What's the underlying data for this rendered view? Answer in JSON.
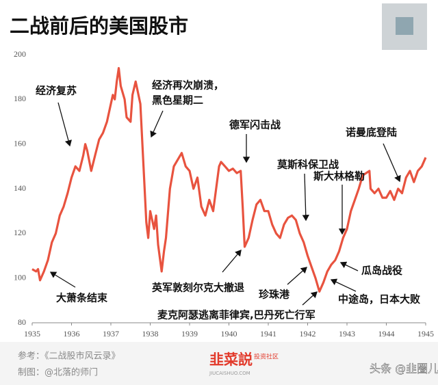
{
  "chart_data": {
    "type": "line",
    "title": "二战前后的美国股市",
    "x": [
      1935.0,
      1935.1,
      1935.15,
      1935.2,
      1935.3,
      1935.4,
      1935.5,
      1935.6,
      1935.7,
      1935.8,
      1935.9,
      1936.0,
      1936.1,
      1936.2,
      1936.3,
      1936.35,
      1936.4,
      1936.5,
      1936.6,
      1936.7,
      1936.8,
      1936.9,
      1937.0,
      1937.05,
      1937.1,
      1937.15,
      1937.2,
      1937.25,
      1937.35,
      1937.4,
      1937.5,
      1937.55,
      1937.63,
      1937.75,
      1937.83,
      1937.9,
      1937.95,
      1938.0,
      1938.1,
      1938.15,
      1938.2,
      1938.29,
      1938.35,
      1938.4,
      1938.5,
      1938.6,
      1938.8,
      1938.9,
      1939.0,
      1939.1,
      1939.2,
      1939.3,
      1939.4,
      1939.5,
      1939.6,
      1939.75,
      1939.8,
      1939.9,
      1940.0,
      1940.1,
      1940.2,
      1940.3,
      1940.35,
      1940.4,
      1940.5,
      1940.6,
      1940.7,
      1940.8,
      1940.9,
      1941.0,
      1941.1,
      1941.2,
      1941.3,
      1941.4,
      1941.5,
      1941.6,
      1941.7,
      1941.8,
      1941.9,
      1942.0,
      1942.1,
      1942.2,
      1942.3,
      1942.4,
      1942.5,
      1942.6,
      1942.7,
      1942.8,
      1942.9,
      1943.0,
      1943.1,
      1943.2,
      1943.3,
      1943.4,
      1943.57,
      1943.6,
      1943.7,
      1943.8,
      1943.9,
      1944.0,
      1944.1,
      1944.2,
      1944.3,
      1944.4,
      1944.5,
      1944.6,
      1944.7,
      1944.8,
      1944.9,
      1945.0
    ],
    "values": [
      104,
      103,
      104,
      99,
      103,
      108,
      116,
      120,
      128,
      132,
      138,
      145,
      150,
      148,
      155,
      160,
      157,
      148,
      155,
      162,
      165,
      170,
      178,
      182,
      180,
      188,
      194,
      186,
      180,
      172,
      170,
      182,
      188,
      178,
      150,
      125,
      118,
      130,
      122,
      128,
      115,
      103,
      112,
      118,
      140,
      150,
      156,
      150,
      148,
      140,
      145,
      132,
      128,
      135,
      130,
      150,
      152,
      150,
      148,
      149,
      147,
      148,
      132,
      114,
      118,
      126,
      133,
      135,
      130,
      130,
      124,
      120,
      118,
      124,
      127,
      128,
      126,
      120,
      116,
      110,
      105,
      100,
      94,
      98,
      103,
      106,
      108,
      112,
      118,
      122,
      130,
      135,
      140,
      146,
      148,
      140,
      138,
      140,
      136,
      136,
      139,
      135,
      140,
      138,
      145,
      148,
      143,
      148,
      150,
      154
    ],
    "color": "#e8533f",
    "xlim": [
      1935,
      1945
    ],
    "xticks": [
      1935,
      1936,
      1937,
      1938,
      1939,
      1940,
      1941,
      1942,
      1943,
      1944,
      1945
    ],
    "ylim": [
      80,
      200
    ],
    "yticks": [
      80,
      100,
      120,
      140,
      160,
      180,
      200
    ],
    "grid": false,
    "annotations": [
      "经济复苏",
      "经济再次崩溃，",
      "黑色星期二",
      "德军闪击战",
      "莫斯科保卫战",
      "斯大林格勒",
      "诺曼底登陆",
      "大萧条结束",
      "英军敦刻尔克大撤退",
      "珍珠港",
      "麦克阿瑟逃离菲律宾,巴丹死亡行军",
      "中途岛，日本大败",
      "瓜岛战役"
    ]
  },
  "footer": {
    "source": "参考：《二战股市风云录》",
    "author": "制图：@北落的师门",
    "logo": "韭菜説",
    "logo_sub": "投资社区",
    "logo_url": "JIUCAISHUO.COM",
    "watermark": "头条 @韭圈儿"
  }
}
